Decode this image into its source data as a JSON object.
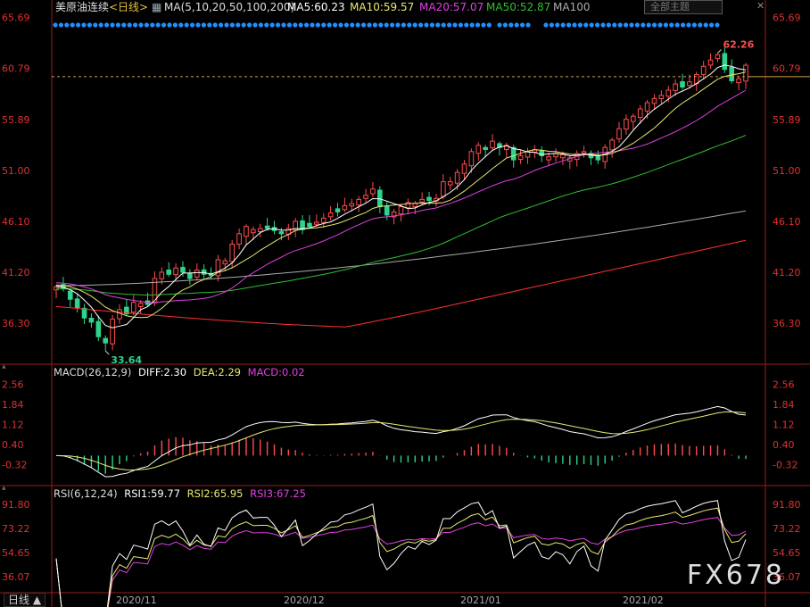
{
  "header": {
    "symbol": "美原油连续",
    "period": "<日线>",
    "ma_label": "MA(5,10,20,50,100,200)",
    "ma5": "MA5:60.23",
    "ma10": "MA10:59.57",
    "ma20": "MA20:57.07",
    "ma50": "MA50:52.87",
    "ma100": "MA100",
    "theme_button": "全部主题",
    "close_button": "✕"
  },
  "colors": {
    "up": "#ff4d4d",
    "down": "#2dd58c",
    "ma5": "#ffffff",
    "ma10": "#e8e870",
    "ma20": "#e040e0",
    "ma50": "#30c030",
    "ma100": "#aaaaaa",
    "ma200": "#ff3030",
    "axis": "#9b1b1b",
    "price_label": "#e03030",
    "dash": "#d4a040",
    "dots": "#1e90ff"
  },
  "macd_panel": {
    "title": "MACD(26,12,9)",
    "diff": "DIFF:2.30",
    "dea": "DEA:2.29",
    "macd": "MACD:0.02"
  },
  "rsi_panel": {
    "title": "RSI(6,12,24)",
    "rsi1": "RSI1:59.77",
    "rsi2": "RSI2:65.95",
    "rsi3": "RSI3:67.25"
  },
  "footer": {
    "cycle_button": "日线 ▲",
    "watermark": "FX678",
    "dates": [
      "2020/11",
      "2020/12",
      "2021/01",
      "2021/02"
    ]
  },
  "chart_data": [
    {
      "type": "candlestick",
      "name": "price",
      "y_ticks": [
        65.69,
        60.79,
        55.89,
        51.0,
        46.1,
        41.2,
        36.3
      ],
      "y_tick_labels": [
        "65.69",
        "60.79",
        "55.89",
        "51.00",
        "46.10",
        "41.20",
        "36.30"
      ],
      "ylim": [
        32.7,
        66.0
      ],
      "annotations": [
        {
          "label": "62.26",
          "value": 62.26
        },
        {
          "label": "33.64",
          "value": 33.64
        }
      ],
      "last_price_line": 60.0,
      "closes": [
        39.8,
        39.6,
        38.6,
        37.8,
        36.8,
        36.4,
        35.0,
        34.4,
        36.7,
        37.6,
        37.2,
        38.3,
        38.2,
        38.1,
        40.6,
        41.2,
        41.0,
        41.6,
        41.2,
        40.6,
        41.4,
        41.0,
        40.9,
        42.4,
        42.3,
        43.9,
        44.9,
        45.6,
        45.3,
        45.4,
        45.4,
        45.2,
        44.9,
        45.4,
        46.1,
        45.3,
        45.6,
        46.0,
        46.4,
        46.9,
        47.0,
        47.6,
        47.8,
        48.2,
        48.6,
        49.2,
        47.5,
        46.7,
        47.0,
        47.5,
        47.9,
        47.8,
        48.2,
        48.1,
        48.3,
        49.9,
        49.9,
        50.8,
        51.6,
        52.8,
        53.4,
        53.0,
        53.8,
        53.2,
        53.4,
        52.0,
        52.4,
        52.8,
        53.0,
        52.4,
        52.3,
        52.6,
        52.5,
        52.2,
        52.6,
        52.8,
        52.2,
        52.0,
        53.2,
        53.9,
        55.0,
        55.9,
        56.2,
        56.9,
        57.5,
        57.9,
        58.2,
        58.7,
        59.3,
        59.0,
        59.5,
        60.2,
        61.0,
        61.6,
        62.1,
        60.7,
        59.6,
        59.8,
        61.1
      ],
      "series": [
        {
          "name": "MA5",
          "color": "#ffffff"
        },
        {
          "name": "MA10",
          "color": "#e8e870"
        },
        {
          "name": "MA20",
          "color": "#e040e0"
        },
        {
          "name": "MA50",
          "color": "#30c030"
        },
        {
          "name": "MA100",
          "color": "#aaaaaa"
        },
        {
          "name": "MA200",
          "color": "#ff3030"
        }
      ]
    },
    {
      "type": "bar+line",
      "name": "MACD",
      "y_ticks": [
        2.56,
        1.84,
        1.12,
        0.4,
        -0.32
      ],
      "y_tick_labels": [
        "2.56",
        "1.84",
        "1.12",
        "0.40",
        "-0.32"
      ],
      "ylim": [
        -0.95,
        2.9
      ],
      "series": [
        {
          "name": "DIFF",
          "color": "#ffffff"
        },
        {
          "name": "DEA",
          "color": "#e8e870"
        },
        {
          "name": "MACD",
          "color": "#ff4d4d"
        }
      ]
    },
    {
      "type": "line",
      "name": "RSI",
      "y_ticks": [
        91.8,
        73.22,
        54.65,
        36.07
      ],
      "y_tick_labels": [
        "91.80",
        "73.22",
        "54.65",
        "36.07"
      ],
      "ylim": [
        25,
        98
      ],
      "series": [
        {
          "name": "RSI1",
          "color": "#ffffff"
        },
        {
          "name": "RSI2",
          "color": "#e8e870"
        },
        {
          "name": "RSI3",
          "color": "#e040e0"
        }
      ]
    }
  ]
}
